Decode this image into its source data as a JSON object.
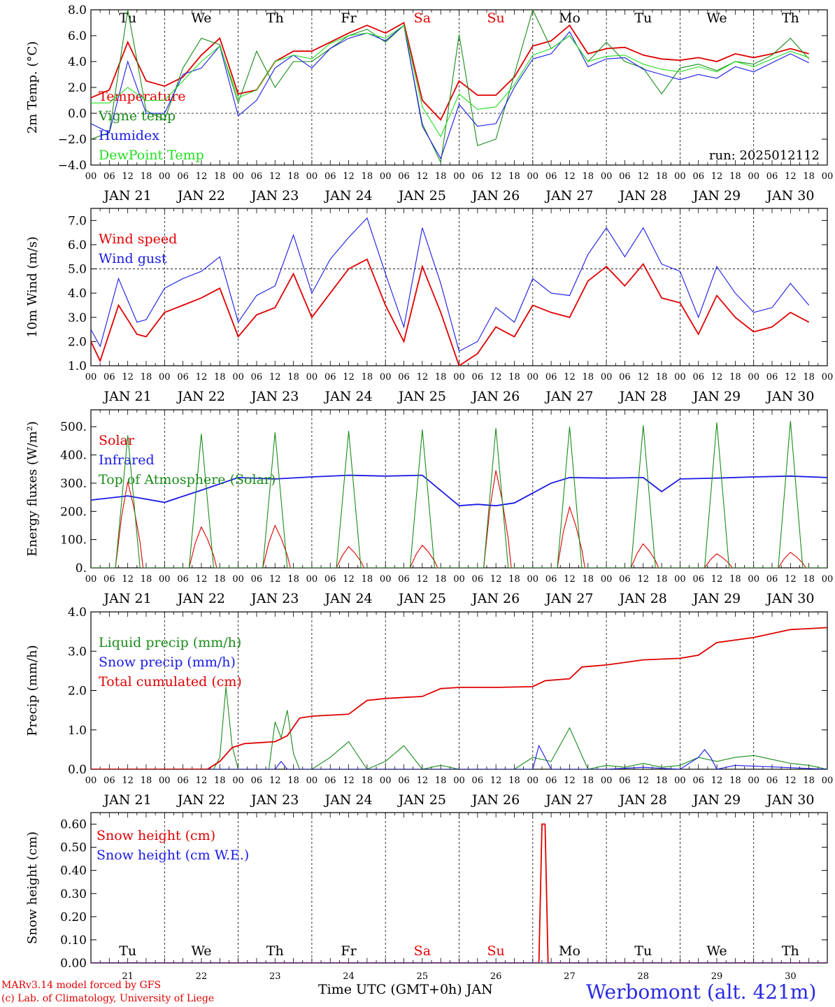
{
  "page": {
    "credit_line1": "MARv3.14 model forced by GFS",
    "credit_line2": "(c) Lab. of Climatology, University of Liege",
    "x_axis_title": "Time UTC (GMT+0h) JAN",
    "station": "Werbomont (alt. 421m)",
    "colors": {
      "red": "#e00000",
      "green": "#1a8c1a",
      "blue": "#1a1ae6",
      "light_green": "#22dd22",
      "weekend": "#e00000"
    }
  },
  "time_axis": {
    "days": [
      "JAN 21",
      "JAN 22",
      "JAN 23",
      "JAN 24",
      "JAN 25",
      "JAN 26",
      "JAN 27",
      "JAN 28",
      "JAN 29",
      "JAN 30"
    ],
    "weekdays": [
      "Tu",
      "We",
      "Th",
      "Fr",
      "Sa",
      "Su",
      "Mo",
      "Tu",
      "We",
      "Th"
    ],
    "weekend_index": [
      4,
      5
    ],
    "hour_labels": [
      "00",
      "06",
      "12",
      "18"
    ],
    "day_numbers": [
      "21",
      "22",
      "23",
      "24",
      "25",
      "26",
      "27",
      "28",
      "29",
      "30"
    ]
  },
  "chart_data": [
    {
      "type": "line",
      "ylabel": "2m Temp. (°C)",
      "ylim": [
        -4,
        8
      ],
      "yticks": [
        "8.0",
        "6.0",
        "4.0",
        "2.0",
        "0.0",
        "−2.0",
        "−4.0"
      ],
      "reference_line": 0,
      "annotation": "run: 2025012112",
      "x_unit": "hours since JAN 21 00 UTC",
      "series": [
        {
          "name": "Temperature",
          "color": "#e00000",
          "x": [
            0,
            6,
            12,
            18,
            24,
            30,
            36,
            42,
            48,
            54,
            60,
            66,
            72,
            78,
            84,
            90,
            96,
            102,
            108,
            114,
            120,
            126,
            132,
            138,
            144,
            150,
            156,
            162,
            168,
            174,
            180,
            186,
            192,
            198,
            204,
            210,
            216,
            222,
            228,
            234
          ],
          "y": [
            1.2,
            1.8,
            5.5,
            2.5,
            2.1,
            2.8,
            4.5,
            5.8,
            1.5,
            1.8,
            4.0,
            4.8,
            4.8,
            5.5,
            6.2,
            6.8,
            6.2,
            7.0,
            1.0,
            -0.5,
            2.5,
            1.4,
            1.4,
            2.8,
            5.2,
            5.6,
            6.8,
            4.6,
            5.0,
            5.1,
            4.5,
            4.2,
            4.1,
            4.3,
            4.0,
            4.6,
            4.3,
            4.6,
            5.0,
            4.6
          ]
        },
        {
          "name": "Vigne temp",
          "color": "#1a8c1a",
          "x": [
            0,
            6,
            12,
            18,
            24,
            30,
            36,
            42,
            48,
            54,
            60,
            66,
            72,
            78,
            84,
            90,
            96,
            102,
            108,
            114,
            120,
            126,
            132,
            138,
            144,
            150,
            156,
            162,
            168,
            174,
            180,
            186,
            192,
            198,
            204,
            210,
            216,
            222,
            228,
            234
          ],
          "y": [
            -2.0,
            -1.5,
            8.0,
            0.2,
            -0.5,
            3.5,
            5.8,
            5.3,
            0.8,
            4.8,
            2.0,
            4.0,
            4.0,
            5.0,
            6.0,
            6.5,
            5.5,
            6.8,
            -0.8,
            -3.8,
            6.1,
            -2.5,
            -2.0,
            3.0,
            8.0,
            5.0,
            6.0,
            4.0,
            5.5,
            4.0,
            3.5,
            1.5,
            3.5,
            3.8,
            3.3,
            4.0,
            3.8,
            4.5,
            5.8,
            4.2
          ]
        },
        {
          "name": "Humidex",
          "color": "#1a1ae6",
          "x": [
            0,
            6,
            12,
            18,
            24,
            30,
            36,
            42,
            48,
            54,
            60,
            66,
            72,
            78,
            84,
            90,
            96,
            102,
            108,
            114,
            120,
            126,
            132,
            138,
            144,
            150,
            156,
            162,
            168,
            174,
            180,
            186,
            192,
            198,
            204,
            210,
            216,
            222,
            228,
            234
          ],
          "y": [
            -0.8,
            -1.5,
            4.0,
            0.0,
            0.0,
            3.0,
            3.5,
            5.2,
            -0.2,
            1.0,
            3.5,
            4.5,
            3.5,
            5.0,
            5.8,
            6.2,
            5.6,
            6.8,
            -1.0,
            -3.5,
            0.7,
            -1.0,
            -0.8,
            2.0,
            4.2,
            4.6,
            6.3,
            3.6,
            4.2,
            4.3,
            3.4,
            3.0,
            2.6,
            3.0,
            2.7,
            3.6,
            3.2,
            3.9,
            4.6,
            3.9
          ]
        },
        {
          "name": "DewPoint Temp",
          "color": "#22dd22",
          "x": [
            0,
            6,
            12,
            18,
            24,
            30,
            36,
            42,
            48,
            54,
            60,
            66,
            72,
            78,
            84,
            90,
            96,
            102,
            108,
            114,
            120,
            126,
            132,
            138,
            144,
            150,
            156,
            162,
            168,
            174,
            180,
            186,
            192,
            198,
            204,
            210,
            216,
            222,
            228,
            234
          ],
          "y": [
            0.8,
            0.8,
            2.0,
            1.0,
            1.0,
            2.5,
            4.0,
            5.2,
            1.2,
            1.8,
            4.0,
            4.5,
            4.2,
            5.4,
            6.0,
            6.2,
            5.8,
            6.8,
            0.5,
            -1.8,
            1.5,
            0.3,
            0.5,
            2.2,
            4.5,
            5.0,
            6.0,
            4.0,
            4.4,
            4.5,
            3.8,
            3.4,
            3.2,
            3.6,
            3.2,
            4.0,
            3.6,
            4.2,
            4.8,
            4.3
          ]
        }
      ]
    },
    {
      "type": "line",
      "ylabel": "10m Wind (m/s)",
      "ylim": [
        1,
        7.5
      ],
      "yticks": [
        "7.0",
        "6.0",
        "5.0",
        "4.0",
        "3.0",
        "2.0",
        "1.0"
      ],
      "reference_line": 5,
      "x_unit": "hours since JAN 21 00 UTC",
      "series": [
        {
          "name": "Wind speed",
          "color": "#e00000",
          "x": [
            0,
            3,
            9,
            12,
            15,
            18,
            24,
            30,
            36,
            42,
            48,
            54,
            60,
            66,
            72,
            78,
            84,
            90,
            96,
            102,
            108,
            114,
            120,
            126,
            132,
            138,
            144,
            150,
            156,
            162,
            168,
            174,
            180,
            186,
            192,
            198,
            204,
            210,
            216,
            222,
            228,
            234
          ],
          "y": [
            2.0,
            1.2,
            3.5,
            2.9,
            2.3,
            2.2,
            3.2,
            3.5,
            3.8,
            4.2,
            2.2,
            3.1,
            3.4,
            4.8,
            3.0,
            4.0,
            5.0,
            5.4,
            3.5,
            2.0,
            5.1,
            3.2,
            1.0,
            1.5,
            2.6,
            2.2,
            3.5,
            3.2,
            3.0,
            4.5,
            5.1,
            4.3,
            5.2,
            3.8,
            3.6,
            2.3,
            3.9,
            3.0,
            2.4,
            2.6,
            3.2,
            2.8
          ]
        },
        {
          "name": "Wind gust",
          "color": "#1a1ae6",
          "x": [
            0,
            3,
            9,
            12,
            15,
            18,
            24,
            30,
            36,
            42,
            48,
            54,
            60,
            66,
            72,
            78,
            84,
            90,
            96,
            102,
            108,
            114,
            120,
            126,
            132,
            138,
            144,
            150,
            156,
            162,
            168,
            174,
            180,
            186,
            192,
            198,
            204,
            210,
            216,
            222,
            228,
            234
          ],
          "y": [
            2.5,
            1.8,
            4.6,
            3.7,
            2.8,
            2.9,
            4.2,
            4.6,
            4.9,
            5.5,
            2.8,
            3.9,
            4.3,
            6.4,
            4.0,
            5.4,
            6.3,
            7.1,
            4.8,
            2.6,
            6.7,
            4.4,
            1.6,
            2.0,
            3.4,
            2.8,
            4.6,
            4.0,
            3.9,
            5.6,
            6.7,
            5.5,
            6.7,
            5.2,
            4.9,
            3.0,
            5.1,
            4.0,
            3.2,
            3.4,
            4.4,
            3.5
          ]
        }
      ]
    },
    {
      "type": "line",
      "ylabel": "Energy fluxes (W/m²)",
      "ylim": [
        0,
        560
      ],
      "yticks": [
        "500.",
        "400.",
        "300.",
        "200.",
        "100.",
        "0."
      ],
      "x_unit": "hours since JAN 21 00 UTC",
      "series": [
        {
          "name": "Solar",
          "color": "#e00000",
          "peaks": [
            305,
            145,
            150,
            75,
            80,
            345,
            215,
            85,
            50,
            55
          ]
        },
        {
          "name": "Infrared",
          "color": "#1a1ae6",
          "x": [
            0,
            12,
            24,
            36,
            48,
            60,
            72,
            84,
            96,
            108,
            120,
            126,
            132,
            138,
            144,
            150,
            156,
            168,
            180,
            186,
            192,
            204,
            216,
            228,
            240
          ],
          "y": [
            240,
            255,
            232,
            275,
            320,
            315,
            322,
            328,
            325,
            328,
            220,
            225,
            220,
            230,
            265,
            300,
            320,
            318,
            320,
            270,
            315,
            318,
            322,
            325,
            320
          ]
        },
        {
          "name": "Top of Atmosphere (Solar)",
          "color": "#1a8c1a",
          "peaks": [
            470,
            475,
            480,
            485,
            490,
            495,
            500,
            505,
            515,
            520
          ]
        }
      ]
    },
    {
      "type": "line",
      "ylabel": "Precip (mm/h)",
      "ylim": [
        0,
        4
      ],
      "yticks": [
        "4.0",
        "3.0",
        "2.0",
        "1.0",
        "0.0"
      ],
      "x_unit": "hours since JAN 21 00 UTC",
      "series": [
        {
          "name": "Liquid precip (mm/h)",
          "color": "#1a8c1a",
          "x": [
            0,
            40,
            42,
            44,
            46,
            48,
            54,
            58,
            60,
            62,
            64,
            66,
            68,
            72,
            78,
            84,
            90,
            96,
            102,
            108,
            114,
            120,
            126,
            132,
            138,
            144,
            150,
            156,
            162,
            168,
            174,
            180,
            186,
            192,
            198,
            204,
            210,
            216,
            222,
            228,
            234,
            240
          ],
          "y": [
            0,
            0,
            0.3,
            2.1,
            0.6,
            0,
            0,
            0,
            1.2,
            0.8,
            1.5,
            0.4,
            0,
            0,
            0.3,
            0.7,
            0,
            0.2,
            0.6,
            0,
            0.1,
            0,
            0,
            0,
            0,
            0.3,
            0.2,
            1.05,
            0,
            0.1,
            0.05,
            0.15,
            0.05,
            0.1,
            0.3,
            0.2,
            0.3,
            0.35,
            0.25,
            0.15,
            0.1,
            0
          ]
        },
        {
          "name": "Snow precip (mm/h)",
          "color": "#1a1ae6",
          "x": [
            0,
            48,
            60,
            62,
            64,
            72,
            144,
            146,
            148,
            150,
            156,
            168,
            180,
            192,
            198,
            200,
            202,
            204,
            210,
            240
          ],
          "y": [
            0,
            0,
            0,
            0.2,
            0,
            0,
            0,
            0.6,
            0.3,
            0,
            0,
            0,
            0.05,
            0,
            0.3,
            0.5,
            0.3,
            0,
            0.1,
            0
          ]
        },
        {
          "name": "Total cumulated (cm)",
          "color": "#e00000",
          "x": [
            0,
            38,
            42,
            46,
            50,
            60,
            64,
            68,
            72,
            84,
            90,
            96,
            108,
            114,
            120,
            132,
            144,
            148,
            156,
            160,
            168,
            180,
            192,
            198,
            204,
            216,
            228,
            240
          ],
          "y": [
            0,
            0,
            0.2,
            0.55,
            0.65,
            0.7,
            0.85,
            1.3,
            1.35,
            1.4,
            1.75,
            1.8,
            1.85,
            2.05,
            2.08,
            2.08,
            2.1,
            2.25,
            2.3,
            2.6,
            2.65,
            2.78,
            2.82,
            2.9,
            3.22,
            3.35,
            3.55,
            3.6
          ]
        }
      ]
    },
    {
      "type": "line",
      "ylabel": "Snow height (cm)",
      "ylim": [
        0,
        0.65
      ],
      "yticks": [
        "0.60",
        "0.50",
        "0.40",
        "0.30",
        "0.20",
        "0.10",
        "0.00"
      ],
      "x_unit": "hours since JAN 21 00 UTC",
      "series": [
        {
          "name": "Snow height (cm)",
          "color": "#e00000",
          "x": [
            0,
            146,
            147,
            148,
            149,
            240
          ],
          "y": [
            0,
            0,
            0.6,
            0.6,
            0,
            0
          ]
        },
        {
          "name": "Snow height (cm W.E.)",
          "color": "#1a1ae6",
          "x": [
            0,
            240
          ],
          "y": [
            0,
            0
          ]
        }
      ]
    }
  ]
}
